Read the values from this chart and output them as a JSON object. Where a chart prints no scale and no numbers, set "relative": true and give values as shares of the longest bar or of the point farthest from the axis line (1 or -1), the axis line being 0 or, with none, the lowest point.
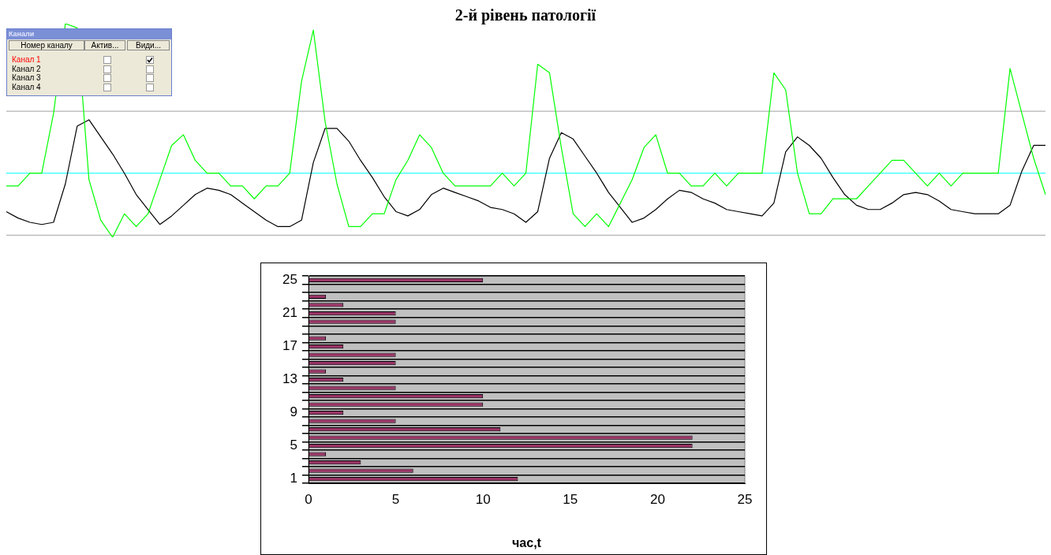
{
  "chart_data": [
    {
      "type": "line",
      "title": "2-й рівень патології",
      "relative": true,
      "marker": "none",
      "categories": [
        null,
        null,
        null,
        null,
        null,
        null,
        null,
        null,
        null,
        null,
        null,
        null,
        null,
        null,
        null,
        null,
        null,
        null,
        null,
        null,
        null,
        null,
        null,
        null,
        null,
        null,
        null,
        null,
        null,
        null,
        null,
        null,
        null,
        null,
        null,
        null,
        null,
        null,
        null,
        null,
        null,
        null,
        null,
        null,
        null,
        null,
        null,
        null,
        null,
        null,
        null,
        null,
        null,
        null,
        null,
        null,
        null,
        null,
        null,
        null,
        null,
        null,
        null,
        null,
        null,
        null,
        null,
        null,
        null,
        null,
        null,
        null,
        null,
        null,
        null,
        null,
        null,
        null,
        null,
        null,
        null,
        null,
        null,
        null,
        null,
        null,
        null,
        null,
        null
      ],
      "series": [
        {
          "color": "#00ff00",
          "values": [
            0.24,
            0.24,
            0.3,
            0.3,
            0.58,
            1.0,
            0.98,
            0.27,
            0.08,
            0,
            0.11,
            0.05,
            0.11,
            0.27,
            0.43,
            0.48,
            0.36,
            0.3,
            0.3,
            0.24,
            0.24,
            0.18,
            0.24,
            0.24,
            0.3,
            0.73,
            0.97,
            0.54,
            0.25,
            0.05,
            0.05,
            0.11,
            0.11,
            0.27,
            0.36,
            0.48,
            0.42,
            0.3,
            0.24,
            0.24,
            0.24,
            0.24,
            0.3,
            0.24,
            0.3,
            0.81,
            0.77,
            0.42,
            0.11,
            0.05,
            0.11,
            0.05,
            0.16,
            0.27,
            0.42,
            0.48,
            0.3,
            0.3,
            0.24,
            0.24,
            0.3,
            0.24,
            0.3,
            0.3,
            0.3,
            0.77,
            0.69,
            0.3,
            0.11,
            0.11,
            0.18,
            0.18,
            0.18,
            0.24,
            0.3,
            0.36,
            0.36,
            0.3,
            0.24,
            0.3,
            0.24,
            0.3,
            0.3,
            0.3,
            0.3,
            0.79,
            0.58,
            0.37,
            0.2
          ]
        },
        {
          "color": "#000000",
          "values": [
            0.12,
            0.09,
            0.07,
            0.06,
            0.07,
            0.25,
            0.52,
            0.55,
            0.47,
            0.39,
            0.3,
            0.2,
            0.13,
            0.06,
            0.1,
            0.15,
            0.2,
            0.23,
            0.22,
            0.2,
            0.16,
            0.12,
            0.08,
            0.05,
            0.05,
            0.08,
            0.35,
            0.51,
            0.51,
            0.45,
            0.36,
            0.28,
            0.19,
            0.12,
            0.1,
            0.13,
            0.2,
            0.23,
            0.21,
            0.19,
            0.17,
            0.14,
            0.13,
            0.11,
            0.07,
            0.12,
            0.37,
            0.49,
            0.46,
            0.38,
            0.3,
            0.21,
            0.14,
            0.07,
            0.09,
            0.13,
            0.18,
            0.22,
            0.21,
            0.18,
            0.16,
            0.13,
            0.12,
            0.11,
            0.1,
            0.16,
            0.4,
            0.47,
            0.43,
            0.37,
            0.28,
            0.2,
            0.15,
            0.13,
            0.13,
            0.16,
            0.2,
            0.21,
            0.2,
            0.17,
            0.13,
            0.12,
            0.11,
            0.11,
            0.11,
            0.15,
            0.31,
            0.43,
            0.43
          ]
        }
      ],
      "ref_lines": [
        {
          "axis": "y",
          "value": 0.59,
          "color": "#a0a0a0"
        },
        {
          "axis": "y",
          "value": 0.3,
          "color": "#00ffff"
        },
        {
          "axis": "y",
          "value": 0.01,
          "color": "#a0a0a0"
        }
      ]
    },
    {
      "type": "other",
      "title": "Канали",
      "categories": [
        "Номер каналу",
        "Актив...",
        "Види..."
      ],
      "annotations": [
        "Канал 1",
        "Канал 2",
        "Канал 3",
        "Канал 4"
      ],
      "colors": [
        "#ff0000",
        "#000000",
        "#000000",
        "#000000"
      ]
    },
    {
      "type": "bar",
      "orientation": "horizontal",
      "xlabel": "час,t",
      "color": "#993366",
      "grid": "y",
      "categories": [
        "25",
        null,
        null,
        null,
        "21",
        null,
        null,
        null,
        "17",
        null,
        null,
        null,
        "13",
        null,
        null,
        null,
        "9",
        null,
        null,
        null,
        "5",
        null,
        null,
        null,
        "1"
      ],
      "values": [
        10,
        0,
        1,
        2,
        5,
        5,
        0,
        1,
        2,
        5,
        5,
        1,
        2,
        5,
        10,
        10,
        2,
        5,
        11,
        22,
        22,
        1,
        3,
        6,
        12
      ],
      "xlim": [
        0,
        25
      ],
      "xticks": [
        0,
        5,
        10,
        15,
        20,
        25
      ]
    }
  ]
}
